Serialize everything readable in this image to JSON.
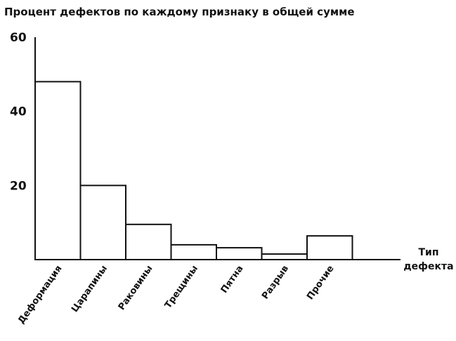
{
  "chart_data": {
    "type": "bar",
    "title": "Процент дефектов по каждому признаку в общей сумме",
    "xlabel": [
      "Тип",
      "дефекта"
    ],
    "ylabel": "",
    "ylim": [
      0,
      60
    ],
    "yticks": [
      20,
      40,
      60
    ],
    "grid": false,
    "categories": [
      "Деформация",
      "Царапины",
      "Раковины",
      "Трещины",
      "Пятна",
      "Разрыв",
      "Прочие"
    ],
    "values": [
      48,
      20,
      9.5,
      4,
      3.2,
      1.5,
      6.4
    ]
  }
}
